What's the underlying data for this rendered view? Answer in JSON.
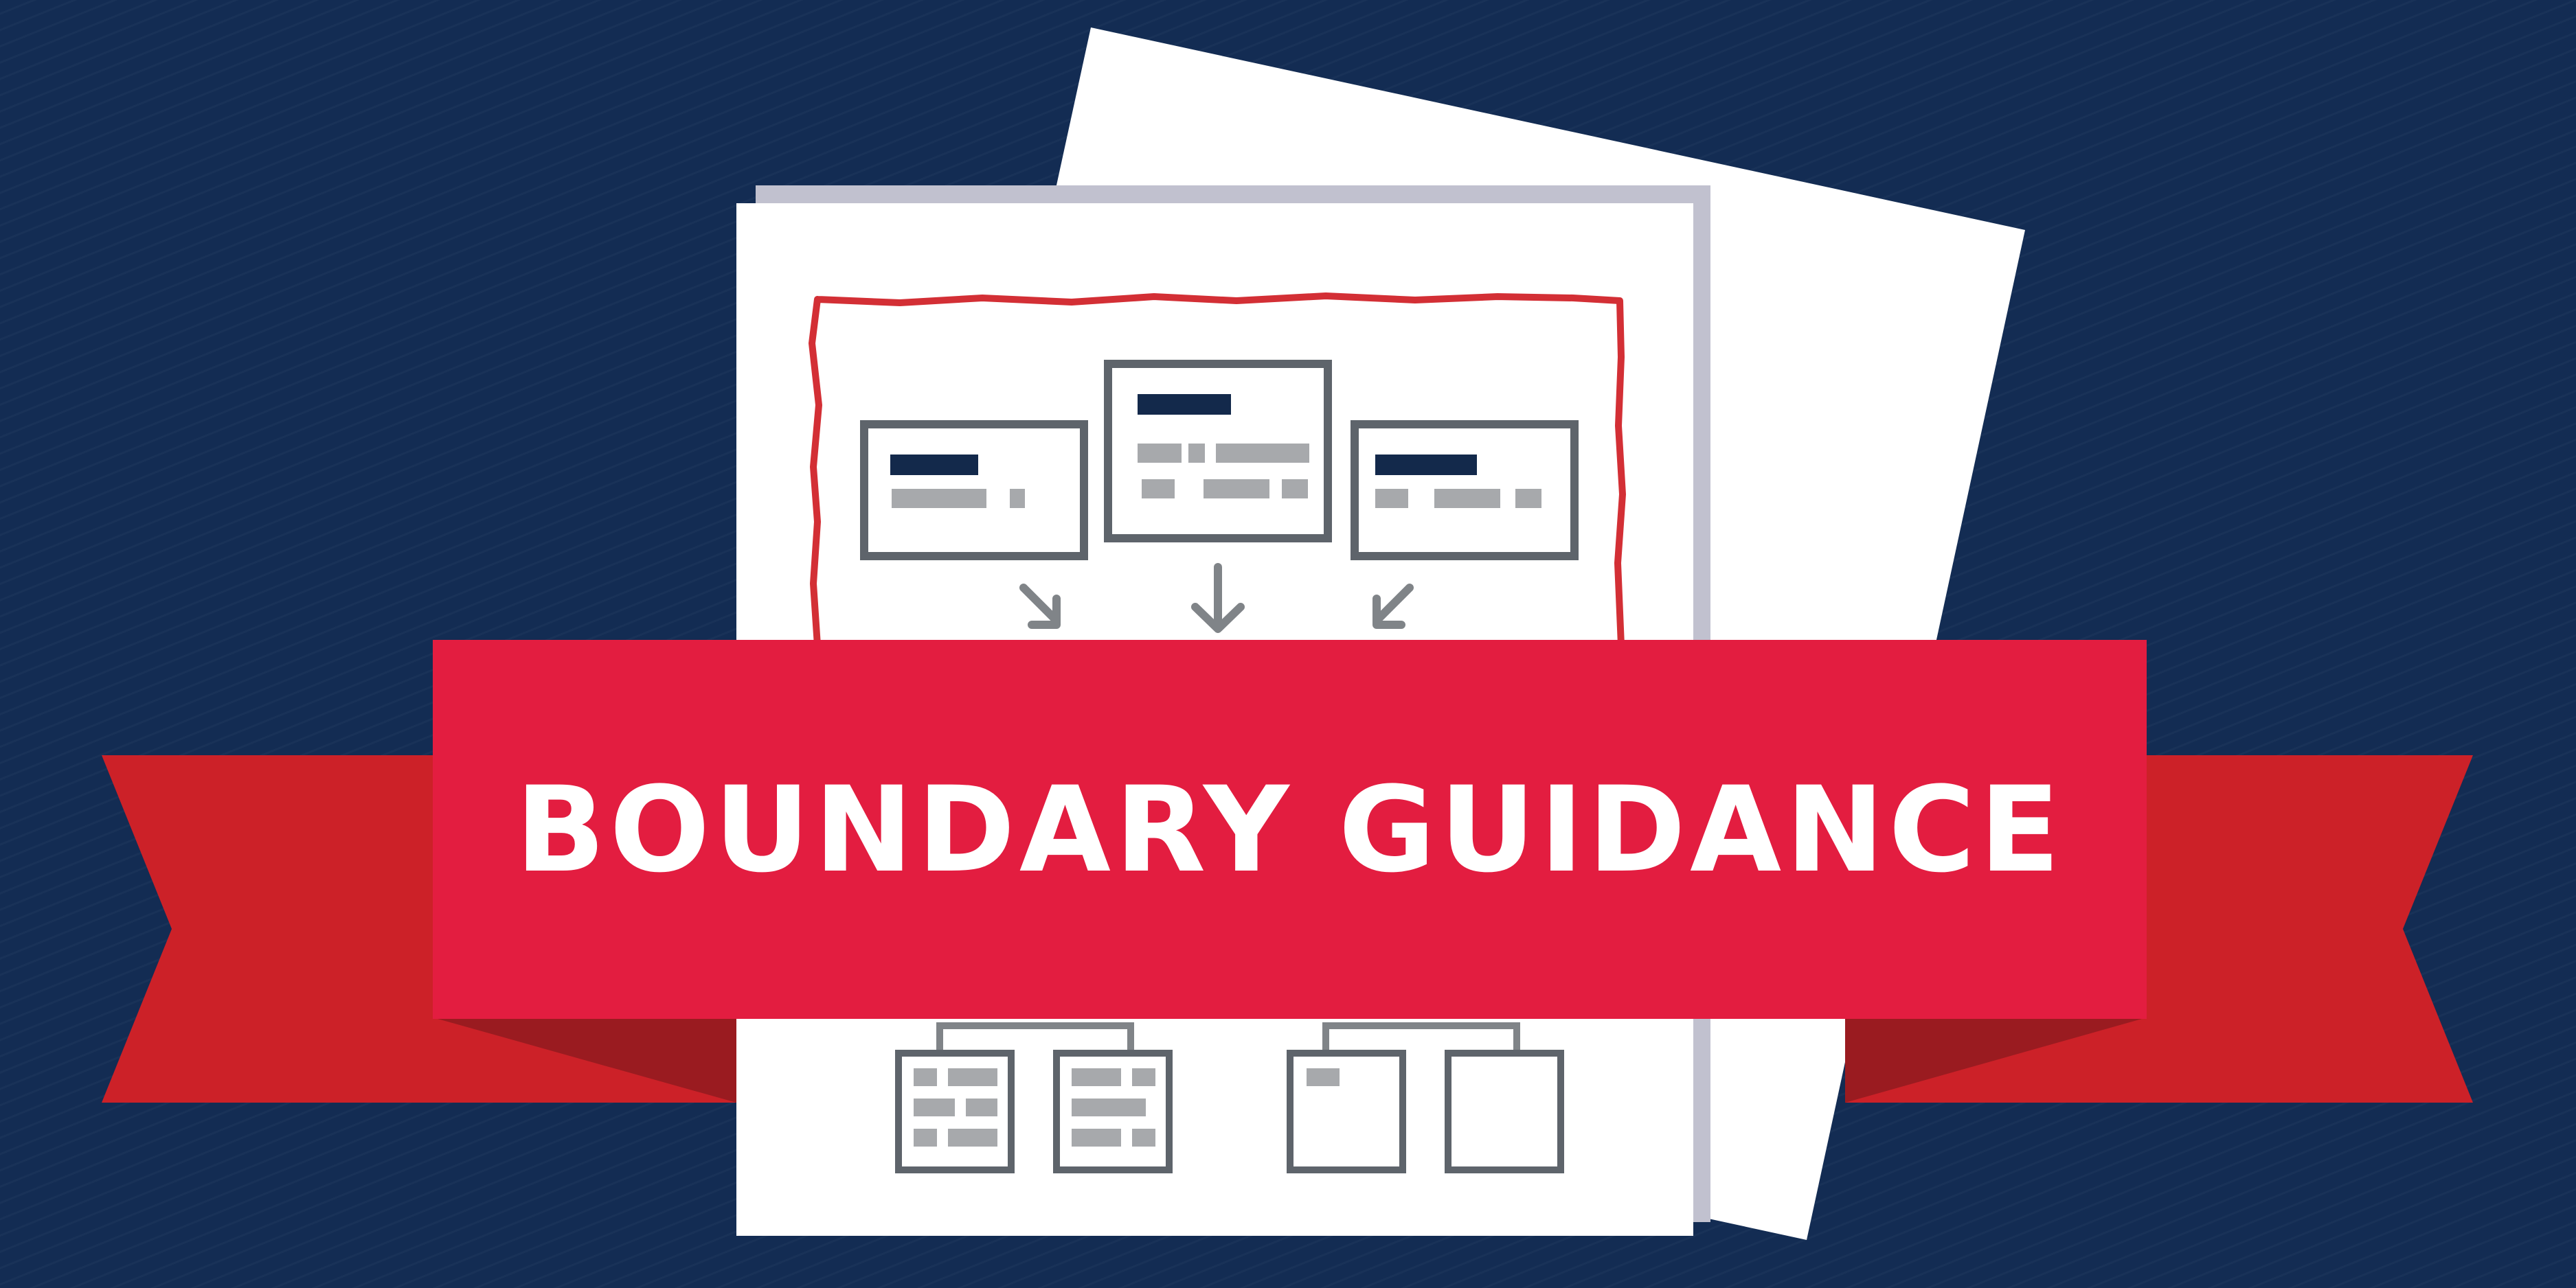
{
  "banner": {
    "title": "BOUNDARY GUIDANCE"
  },
  "colors": {
    "background": "#132c53",
    "banner_red": "#e31d40",
    "ribbon_red": "#cc2128",
    "ribbon_fold": "#9a1b20",
    "document_white": "#ffffff",
    "outline_gray": "#5e646b",
    "placeholder_gray": "#a7a9ac",
    "header_navy": "#13294b",
    "boundary_red": "#d32f35"
  }
}
